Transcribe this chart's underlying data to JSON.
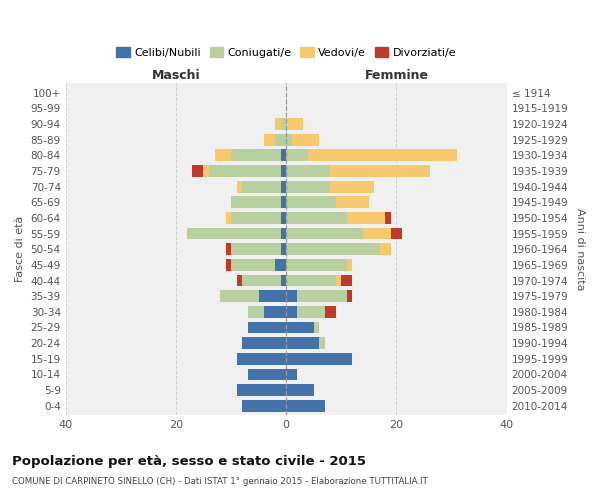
{
  "age_groups": [
    "100+",
    "95-99",
    "90-94",
    "85-89",
    "80-84",
    "75-79",
    "70-74",
    "65-69",
    "60-64",
    "55-59",
    "50-54",
    "45-49",
    "40-44",
    "35-39",
    "30-34",
    "25-29",
    "20-24",
    "15-19",
    "10-14",
    "5-9",
    "0-4"
  ],
  "birth_years": [
    "≤ 1914",
    "1915-1919",
    "1920-1924",
    "1925-1929",
    "1930-1934",
    "1935-1939",
    "1940-1944",
    "1945-1949",
    "1950-1954",
    "1955-1959",
    "1960-1964",
    "1965-1969",
    "1970-1974",
    "1975-1979",
    "1980-1984",
    "1985-1989",
    "1990-1994",
    "1995-1999",
    "2000-2004",
    "2005-2009",
    "2010-2014"
  ],
  "male": {
    "celibi": [
      0,
      0,
      0,
      0,
      1,
      1,
      1,
      1,
      1,
      1,
      1,
      2,
      1,
      5,
      4,
      7,
      8,
      9,
      7,
      9,
      8
    ],
    "coniugati": [
      0,
      0,
      1,
      2,
      9,
      13,
      7,
      9,
      9,
      17,
      9,
      8,
      7,
      7,
      3,
      0,
      0,
      0,
      0,
      0,
      0
    ],
    "vedovi": [
      0,
      0,
      1,
      2,
      3,
      1,
      1,
      0,
      1,
      0,
      0,
      0,
      0,
      0,
      0,
      0,
      0,
      0,
      0,
      0,
      0
    ],
    "divorziati": [
      0,
      0,
      0,
      0,
      0,
      2,
      0,
      0,
      0,
      0,
      1,
      1,
      1,
      0,
      0,
      0,
      0,
      0,
      0,
      0,
      0
    ]
  },
  "female": {
    "nubili": [
      0,
      0,
      0,
      0,
      0,
      0,
      0,
      0,
      0,
      0,
      0,
      0,
      0,
      2,
      2,
      5,
      6,
      12,
      2,
      5,
      7
    ],
    "coniugate": [
      0,
      0,
      0,
      1,
      4,
      8,
      8,
      9,
      11,
      14,
      17,
      11,
      9,
      9,
      5,
      1,
      1,
      0,
      0,
      0,
      0
    ],
    "vedove": [
      0,
      0,
      3,
      5,
      27,
      18,
      8,
      6,
      7,
      5,
      2,
      1,
      1,
      0,
      0,
      0,
      0,
      0,
      0,
      0,
      0
    ],
    "divorziate": [
      0,
      0,
      0,
      0,
      0,
      0,
      0,
      0,
      1,
      2,
      0,
      0,
      2,
      1,
      2,
      0,
      0,
      0,
      0,
      0,
      0
    ]
  },
  "colors": {
    "celibi": "#4472a8",
    "coniugati": "#b8cfa0",
    "vedovi": "#f5c96e",
    "divorziati": "#c0392b"
  },
  "title": "Popolazione per età, sesso e stato civile - 2015",
  "subtitle": "COMUNE DI CARPINETO SINELLO (CH) - Dati ISTAT 1° gennaio 2015 - Elaborazione TUTTITALIA.IT",
  "xlabel_left": "Maschi",
  "xlabel_right": "Femmine",
  "ylabel_left": "Fasce di età",
  "ylabel_right": "Anni di nascita",
  "xlim": 40,
  "legend_labels": [
    "Celibi/Nubili",
    "Coniugati/e",
    "Vedovi/e",
    "Divorziati/e"
  ],
  "background_color": "#ffffff",
  "grid_color": "#cccccc"
}
